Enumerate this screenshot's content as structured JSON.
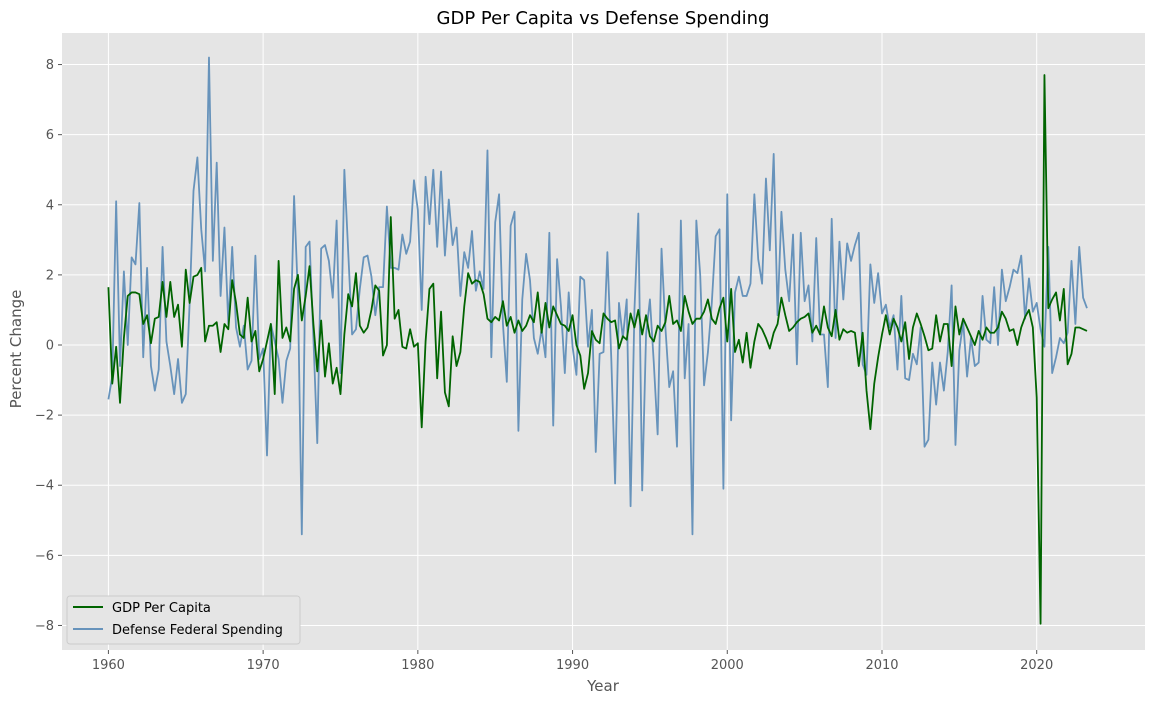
{
  "colors": {
    "panel_bg": "#e5e5e5",
    "grid": "#ffffff",
    "gdp": "#006400",
    "defense": "#6793bb"
  },
  "chart_data": {
    "type": "line",
    "title": "GDP Per Capita vs Defense Spending",
    "xlabel": "Year",
    "ylabel": "Percent Change",
    "xlim": [
      1957,
      2027
    ],
    "ylim": [
      -8.7,
      8.9
    ],
    "xticks": [
      1960,
      1970,
      1980,
      1990,
      2000,
      2010,
      2020
    ],
    "yticks": [
      -8,
      -6,
      -4,
      -2,
      0,
      2,
      4,
      6,
      8
    ],
    "ytick_labels": [
      "−8",
      "−6",
      "−4",
      "−2",
      "0",
      "2",
      "4",
      "6",
      "8"
    ],
    "grid": true,
    "legend_position": "lower-left",
    "series": [
      {
        "name": "GDP Per Capita",
        "color": "#006400",
        "x": [
          1960,
          1960.25,
          1960.5,
          1960.75,
          1961,
          1961.25,
          1961.5,
          1961.75,
          1962,
          1962.25,
          1962.5,
          1962.75,
          1963,
          1963.25,
          1963.5,
          1963.75,
          1964,
          1964.25,
          1964.5,
          1964.75,
          1965,
          1965.25,
          1965.5,
          1965.75,
          1966,
          1966.25,
          1966.5,
          1966.75,
          1967,
          1967.25,
          1967.5,
          1967.75,
          1968,
          1968.25,
          1968.5,
          1968.75,
          1969,
          1969.25,
          1969.5,
          1969.75,
          1970,
          1970.25,
          1970.5,
          1970.75,
          1971,
          1971.25,
          1971.5,
          1971.75,
          1972,
          1972.25,
          1972.5,
          1972.75,
          1973,
          1973.25,
          1973.5,
          1973.75,
          1974,
          1974.25,
          1974.5,
          1974.75,
          1975,
          1975.25,
          1975.5,
          1975.75,
          1976,
          1976.25,
          1976.5,
          1976.75,
          1977,
          1977.25,
          1977.5,
          1977.75,
          1978,
          1978.25,
          1978.5,
          1978.75,
          1979,
          1979.25,
          1979.5,
          1979.75,
          1980,
          1980.25,
          1980.5,
          1980.75,
          1981,
          1981.25,
          1981.5,
          1981.75,
          1982,
          1982.25,
          1982.5,
          1982.75,
          1983,
          1983.25,
          1983.5,
          1983.75,
          1984,
          1984.25,
          1984.5,
          1984.75,
          1985,
          1985.25,
          1985.5,
          1985.75,
          1986,
          1986.25,
          1986.5,
          1986.75,
          1987,
          1987.25,
          1987.5,
          1987.75,
          1988,
          1988.25,
          1988.5,
          1988.75,
          1989,
          1989.25,
          1989.5,
          1989.75,
          1990,
          1990.25,
          1990.5,
          1990.75,
          1991,
          1991.25,
          1991.5,
          1991.75,
          1992,
          1992.25,
          1992.5,
          1992.75,
          1993,
          1993.25,
          1993.5,
          1993.75,
          1994,
          1994.25,
          1994.5,
          1994.75,
          1995,
          1995.25,
          1995.5,
          1995.75,
          1996,
          1996.25,
          1996.5,
          1996.75,
          1997,
          1997.25,
          1997.5,
          1997.75,
          1998,
          1998.25,
          1998.5,
          1998.75,
          1999,
          1999.25,
          1999.5,
          1999.75,
          2000,
          2000.25,
          2000.5,
          2000.75,
          2001,
          2001.25,
          2001.5,
          2001.75,
          2002,
          2002.25,
          2002.5,
          2002.75,
          2003,
          2003.25,
          2003.5,
          2003.75,
          2004,
          2004.25,
          2004.5,
          2004.75,
          2005,
          2005.25,
          2005.5,
          2005.75,
          2006,
          2006.25,
          2006.5,
          2006.75,
          2007,
          2007.25,
          2007.5,
          2007.75,
          2008,
          2008.25,
          2008.5,
          2008.75,
          2009,
          2009.25,
          2009.5,
          2009.75,
          2010,
          2010.25,
          2010.5,
          2010.75,
          2011,
          2011.25,
          2011.5,
          2011.75,
          2012,
          2012.25,
          2012.5,
          2012.75,
          2013,
          2013.25,
          2013.5,
          2013.75,
          2014,
          2014.25,
          2014.5,
          2014.75,
          2015,
          2015.25,
          2015.5,
          2015.75,
          2016,
          2016.25,
          2016.5,
          2016.75,
          2017,
          2017.25,
          2017.5,
          2017.75,
          2018,
          2018.25,
          2018.5,
          2018.75,
          2019,
          2019.25,
          2019.5,
          2019.75,
          2020,
          2020.25,
          2020.5,
          2020.75,
          2021,
          2021.25,
          2021.5,
          2021.75,
          2022,
          2022.25,
          2022.5,
          2022.75,
          2023,
          2023.25
        ],
        "values": [
          1.65,
          -1.1,
          -0.05,
          -1.65,
          0.2,
          1.4,
          1.5,
          1.5,
          1.45,
          0.6,
          0.85,
          0.05,
          0.75,
          0.8,
          1.8,
          0.8,
          1.8,
          0.8,
          1.15,
          -0.05,
          2.15,
          1.2,
          1.95,
          2.0,
          2.2,
          0.1,
          0.55,
          0.55,
          0.65,
          -0.2,
          0.6,
          0.45,
          1.85,
          1.2,
          0.3,
          0.2,
          1.35,
          0.1,
          0.4,
          -0.75,
          -0.4,
          0.1,
          0.6,
          -1.4,
          2.4,
          0.2,
          0.5,
          0.1,
          1.6,
          2.0,
          0.7,
          1.4,
          2.25,
          0.6,
          -0.75,
          0.7,
          -0.9,
          0.05,
          -1.1,
          -0.65,
          -1.4,
          0.3,
          1.45,
          1.1,
          2.05,
          0.55,
          0.35,
          0.5,
          1.0,
          1.7,
          1.55,
          -0.3,
          0.0,
          3.65,
          0.75,
          1.0,
          -0.05,
          -0.1,
          0.45,
          -0.05,
          0.05,
          -2.35,
          0.1,
          1.6,
          1.75,
          -0.95,
          0.95,
          -1.35,
          -1.75,
          0.25,
          -0.6,
          -0.2,
          1.1,
          2.05,
          1.75,
          1.85,
          1.8,
          1.45,
          0.75,
          0.65,
          0.8,
          0.7,
          1.25,
          0.55,
          0.8,
          0.35,
          0.7,
          0.4,
          0.55,
          0.85,
          0.65,
          1.5,
          0.35,
          1.2,
          0.5,
          1.1,
          0.85,
          0.6,
          0.55,
          0.4,
          0.85,
          0.0,
          -0.3,
          -1.25,
          -0.8,
          0.4,
          0.15,
          0.05,
          0.9,
          0.75,
          0.65,
          0.7,
          -0.1,
          0.25,
          0.15,
          0.9,
          0.5,
          1.0,
          0.3,
          0.85,
          0.25,
          0.1,
          0.55,
          0.4,
          0.65,
          1.4,
          0.6,
          0.7,
          0.4,
          1.4,
          0.95,
          0.6,
          0.75,
          0.75,
          0.95,
          1.3,
          0.75,
          0.6,
          1.05,
          1.35,
          0.1,
          1.6,
          -0.2,
          0.15,
          -0.5,
          0.35,
          -0.65,
          0.1,
          0.6,
          0.45,
          0.2,
          -0.1,
          0.35,
          0.6,
          1.35,
          0.85,
          0.4,
          0.5,
          0.65,
          0.75,
          0.8,
          0.9,
          0.35,
          0.55,
          0.3,
          1.1,
          0.5,
          0.25,
          1.0,
          0.15,
          0.45,
          0.35,
          0.4,
          0.35,
          -0.6,
          0.35,
          -1.3,
          -2.4,
          -1.1,
          -0.35,
          0.3,
          0.85,
          0.3,
          0.75,
          0.5,
          0.1,
          0.65,
          -0.4,
          0.5,
          0.9,
          0.6,
          0.25,
          -0.15,
          -0.1,
          0.85,
          0.1,
          0.6,
          0.6,
          -0.6,
          1.1,
          0.3,
          0.75,
          0.5,
          0.25,
          0.0,
          0.4,
          0.15,
          0.5,
          0.35,
          0.35,
          0.5,
          0.95,
          0.75,
          0.4,
          0.45,
          0.0,
          0.5,
          0.8,
          1.0,
          0.5,
          -1.5,
          -7.95,
          7.7,
          1.05,
          1.3,
          1.5,
          0.7,
          1.6,
          -0.55,
          -0.25,
          0.5,
          0.5,
          0.45,
          0.4
        ]
      },
      {
        "name": "Defense Federal Spending",
        "color": "#6793bb",
        "x": [
          1960,
          1960.25,
          1960.5,
          1960.75,
          1961,
          1961.25,
          1961.5,
          1961.75,
          1962,
          1962.25,
          1962.5,
          1962.75,
          1963,
          1963.25,
          1963.5,
          1963.75,
          1964,
          1964.25,
          1964.5,
          1964.75,
          1965,
          1965.25,
          1965.5,
          1965.75,
          1966,
          1966.25,
          1966.5,
          1966.75,
          1967,
          1967.25,
          1967.5,
          1967.75,
          1968,
          1968.25,
          1968.5,
          1968.75,
          1969,
          1969.25,
          1969.5,
          1969.75,
          1970,
          1970.25,
          1970.5,
          1970.75,
          1971,
          1971.25,
          1971.5,
          1971.75,
          1972,
          1972.25,
          1972.5,
          1972.75,
          1973,
          1973.25,
          1973.5,
          1973.75,
          1974,
          1974.25,
          1974.5,
          1974.75,
          1975,
          1975.25,
          1975.5,
          1975.75,
          1976,
          1976.25,
          1976.5,
          1976.75,
          1977,
          1977.25,
          1977.5,
          1977.75,
          1978,
          1978.25,
          1978.5,
          1978.75,
          1979,
          1979.25,
          1979.5,
          1979.75,
          1980,
          1980.25,
          1980.5,
          1980.75,
          1981,
          1981.25,
          1981.5,
          1981.75,
          1982,
          1982.25,
          1982.5,
          1982.75,
          1983,
          1983.25,
          1983.5,
          1983.75,
          1984,
          1984.25,
          1984.5,
          1984.75,
          1985,
          1985.25,
          1985.5,
          1985.75,
          1986,
          1986.25,
          1986.5,
          1986.75,
          1987,
          1987.25,
          1987.5,
          1987.75,
          1988,
          1988.25,
          1988.5,
          1988.75,
          1989,
          1989.25,
          1989.5,
          1989.75,
          1990,
          1990.25,
          1990.5,
          1990.75,
          1991,
          1991.25,
          1991.5,
          1991.75,
          1992,
          1992.25,
          1992.5,
          1992.75,
          1993,
          1993.25,
          1993.5,
          1993.75,
          1994,
          1994.25,
          1994.5,
          1994.75,
          1995,
          1995.25,
          1995.5,
          1995.75,
          1996,
          1996.25,
          1996.5,
          1996.75,
          1997,
          1997.25,
          1997.5,
          1997.75,
          1998,
          1998.25,
          1998.5,
          1998.75,
          1999,
          1999.25,
          1999.5,
          1999.75,
          2000,
          2000.25,
          2000.5,
          2000.75,
          2001,
          2001.25,
          2001.5,
          2001.75,
          2002,
          2002.25,
          2002.5,
          2002.75,
          2003,
          2003.25,
          2003.5,
          2003.75,
          2004,
          2004.25,
          2004.5,
          2004.75,
          2005,
          2005.25,
          2005.5,
          2005.75,
          2006,
          2006.25,
          2006.5,
          2006.75,
          2007,
          2007.25,
          2007.5,
          2007.75,
          2008,
          2008.25,
          2008.5,
          2008.75,
          2009,
          2009.25,
          2009.5,
          2009.75,
          2010,
          2010.25,
          2010.5,
          2010.75,
          2011,
          2011.25,
          2011.5,
          2011.75,
          2012,
          2012.25,
          2012.5,
          2012.75,
          2013,
          2013.25,
          2013.5,
          2013.75,
          2014,
          2014.25,
          2014.5,
          2014.75,
          2015,
          2015.25,
          2015.5,
          2015.75,
          2016,
          2016.25,
          2016.5,
          2016.75,
          2017,
          2017.25,
          2017.5,
          2017.75,
          2018,
          2018.25,
          2018.5,
          2018.75,
          2019,
          2019.25,
          2019.5,
          2019.75,
          2020,
          2020.25,
          2020.5,
          2020.75,
          2021,
          2021.25,
          2021.5,
          2021.75,
          2022,
          2022.25,
          2022.5,
          2022.75,
          2023,
          2023.25
        ],
        "values": [
          -1.55,
          -0.9,
          4.1,
          -0.6,
          2.1,
          0.0,
          2.5,
          2.3,
          4.05,
          -0.35,
          2.2,
          -0.6,
          -1.3,
          -0.7,
          2.8,
          0.1,
          -0.6,
          -1.4,
          -0.4,
          -1.65,
          -1.4,
          1.2,
          4.4,
          5.35,
          3.3,
          2.1,
          8.2,
          2.4,
          5.2,
          1.4,
          3.35,
          0.6,
          2.8,
          0.5,
          -0.05,
          0.55,
          -0.7,
          -0.45,
          2.55,
          -0.4,
          -0.1,
          -3.15,
          0.6,
          0.1,
          -0.4,
          -1.65,
          -0.45,
          -0.1,
          4.25,
          1.4,
          -5.4,
          2.8,
          2.95,
          0.2,
          -2.8,
          2.75,
          2.85,
          2.4,
          1.35,
          3.55,
          -0.8,
          5.0,
          2.65,
          0.3,
          0.45,
          1.6,
          2.5,
          2.55,
          1.95,
          0.85,
          1.65,
          1.65,
          3.95,
          2.2,
          2.2,
          2.15,
          3.15,
          2.6,
          2.95,
          4.7,
          3.85,
          1.0,
          4.8,
          3.45,
          5.0,
          2.8,
          4.95,
          2.55,
          4.15,
          2.85,
          3.35,
          1.4,
          2.65,
          2.2,
          3.25,
          1.55,
          2.1,
          1.6,
          5.55,
          -0.35,
          3.5,
          4.3,
          0.6,
          -1.05,
          3.4,
          3.8,
          -2.45,
          1.3,
          2.6,
          1.85,
          0.2,
          -0.25,
          0.45,
          -0.35,
          3.2,
          -2.3,
          2.45,
          1.1,
          -0.8,
          1.5,
          -0.05,
          -0.85,
          1.95,
          1.85,
          -0.05,
          1.0,
          -3.05,
          -0.25,
          -0.2,
          2.65,
          -0.35,
          -3.95,
          1.2,
          0.2,
          1.3,
          -4.6,
          1.0,
          3.75,
          -4.15,
          0.3,
          1.3,
          -0.5,
          -2.55,
          2.75,
          0.5,
          -1.2,
          -0.75,
          -2.9,
          3.55,
          -0.95,
          0.6,
          -5.4,
          3.55,
          2.0,
          -1.15,
          -0.2,
          1.2,
          3.1,
          3.3,
          -4.1,
          4.3,
          -2.15,
          1.5,
          1.95,
          1.4,
          1.4,
          1.75,
          4.3,
          2.45,
          1.75,
          4.75,
          2.7,
          5.45,
          0.85,
          3.8,
          2.15,
          1.25,
          3.15,
          -0.55,
          3.2,
          1.25,
          1.7,
          0.1,
          3.05,
          0.3,
          0.3,
          -1.2,
          3.6,
          0.2,
          2.95,
          1.3,
          2.9,
          2.4,
          2.85,
          3.2,
          -0.55,
          -0.85,
          2.3,
          1.2,
          2.05,
          0.9,
          1.15,
          0.5,
          0.85,
          -0.7,
          1.4,
          -0.95,
          -1.0,
          -0.25,
          -0.55,
          0.5,
          -2.9,
          -2.7,
          -0.5,
          -1.7,
          -0.5,
          -1.3,
          -0.2,
          1.7,
          -2.85,
          -0.15,
          0.65,
          -0.9,
          0.2,
          -0.6,
          -0.5,
          1.4,
          0.15,
          0.05,
          1.65,
          0.0,
          2.15,
          1.25,
          1.65,
          2.15,
          2.05,
          2.55,
          0.75,
          1.9,
          0.95,
          1.2,
          0.45,
          -0.05,
          2.8,
          -0.8,
          -0.35,
          0.2,
          0.05,
          0.35,
          2.4,
          0.6,
          2.8,
          1.35,
          1.05
        ]
      }
    ]
  }
}
